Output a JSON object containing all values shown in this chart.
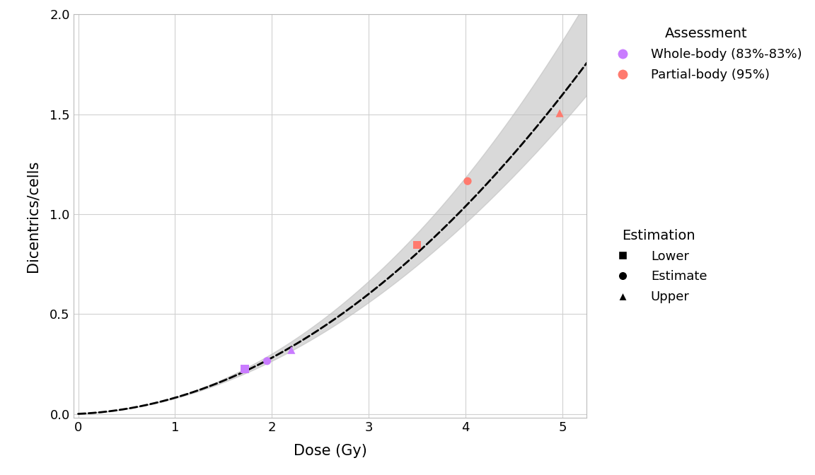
{
  "title": "",
  "xlabel": "Dose (Gy)",
  "ylabel": "Dicentrics/cells",
  "xlim": [
    -0.05,
    5.25
  ],
  "ylim": [
    -0.02,
    2.0
  ],
  "xticks": [
    0,
    1,
    2,
    3,
    4,
    5
  ],
  "yticks": [
    0.0,
    0.5,
    1.0,
    1.5,
    2.0
  ],
  "curve_color": "#000000",
  "band_color": "#bbbbbb",
  "band_alpha": 0.55,
  "whole_body_color": "#c97cff",
  "partial_body_color": "#ff7a6e",
  "whole_body_label": "Whole-body (83%-83%)",
  "partial_body_label": "Partial-body (95%)",
  "wb_lower": [
    1.72,
    0.225
  ],
  "wb_estimate": [
    1.95,
    0.265
  ],
  "wb_upper": [
    2.2,
    0.32
  ],
  "pb_lower": [
    3.5,
    0.845
  ],
  "pb_estimate": [
    4.02,
    1.165
  ],
  "pb_upper": [
    4.97,
    1.505
  ],
  "marker_size": 65,
  "bg_color": "#ffffff",
  "grid_color": "#d0d0d0",
  "font_size": 13,
  "legend_title_fontsize": 14,
  "curve_a": 0.0597,
  "curve_b": 0.021,
  "curve_c": 0.0008
}
